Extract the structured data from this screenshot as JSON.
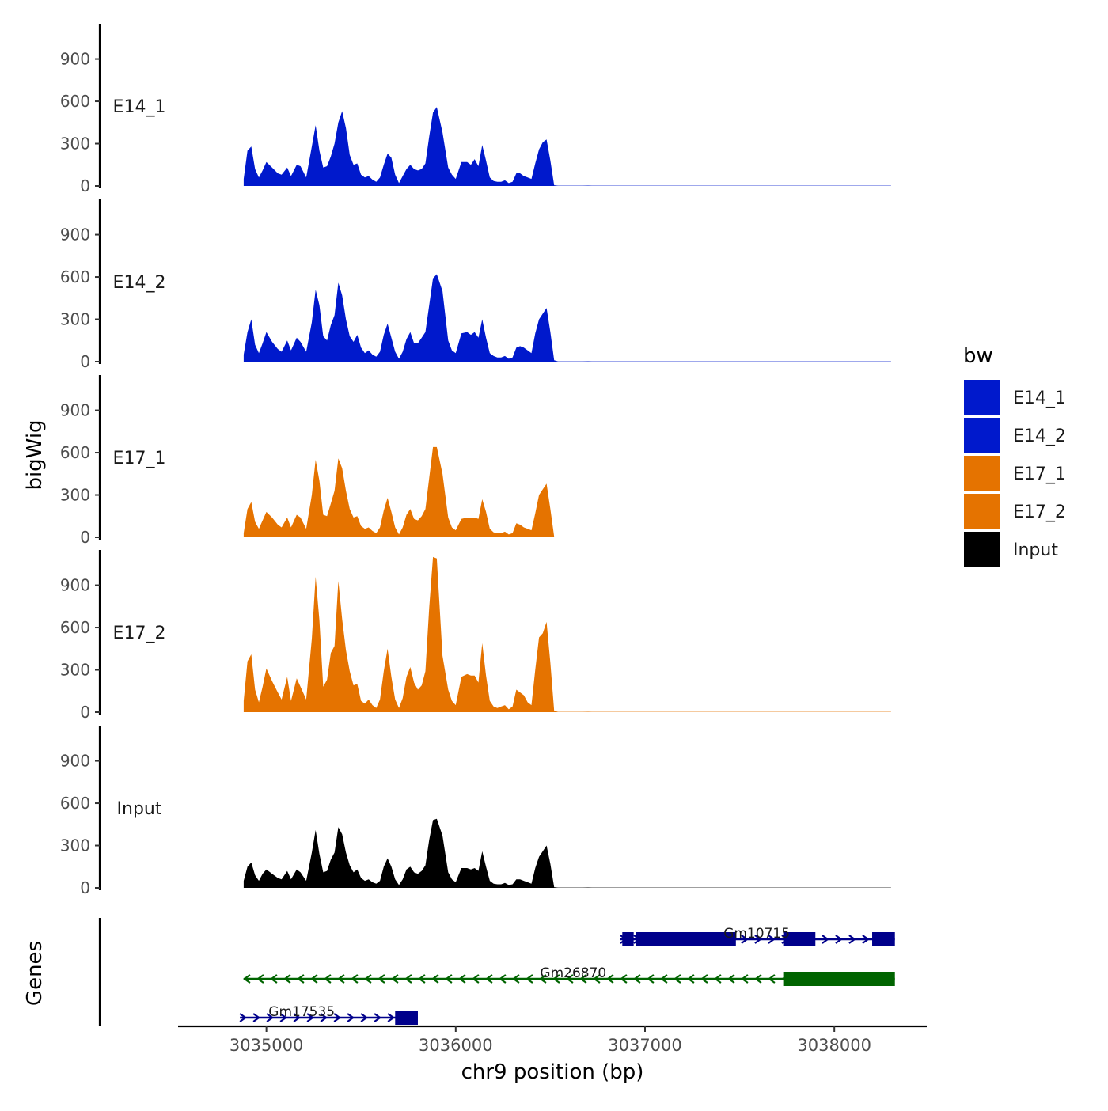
{
  "chart_data": {
    "type": "area",
    "ylabel": "bigWig",
    "xlabel": "chr9 position (bp)",
    "genes_label": "Genes",
    "ylim": [
      0,
      1150
    ],
    "yticks": [
      0,
      300,
      600,
      900
    ],
    "xlim": [
      3034550,
      3038480
    ],
    "xticks": [
      3035000,
      3036000,
      3037000,
      3038000
    ],
    "xtick_labels": [
      "3035000",
      "3036000",
      "3037000",
      "3038000"
    ],
    "legend": {
      "title": "bw",
      "position": "right",
      "entries": [
        {
          "label": "E14_1",
          "color": "#0019CC"
        },
        {
          "label": "E14_2",
          "color": "#0019CC"
        },
        {
          "label": "E17_1",
          "color": "#E57300"
        },
        {
          "label": "E17_2",
          "color": "#E57300"
        },
        {
          "label": "Input",
          "color": "#000000"
        }
      ]
    },
    "x": [
      3034880,
      3034900,
      3034920,
      3034940,
      3034960,
      3034980,
      3035000,
      3035030,
      3035060,
      3035080,
      3035110,
      3035130,
      3035160,
      3035180,
      3035210,
      3035240,
      3035260,
      3035280,
      3035300,
      3035320,
      3035340,
      3035360,
      3035380,
      3035400,
      3035420,
      3035440,
      3035460,
      3035480,
      3035500,
      3035520,
      3035540,
      3035560,
      3035580,
      3035600,
      3035620,
      3035640,
      3035660,
      3035680,
      3035700,
      3035720,
      3035740,
      3035760,
      3035780,
      3035800,
      3035820,
      3035840,
      3035860,
      3035880,
      3035900,
      3035930,
      3035960,
      3035980,
      3036000,
      3036030,
      3036060,
      3036080,
      3036100,
      3036120,
      3036140,
      3036160,
      3036180,
      3036200,
      3036220,
      3036240,
      3036260,
      3036280,
      3036300,
      3036320,
      3036340,
      3036360,
      3036380,
      3036400,
      3036420,
      3036440,
      3036460,
      3036480,
      3036500,
      3036520,
      3036540,
      3036560,
      3036580,
      3036600,
      3036640,
      3036670,
      3036700,
      3036720,
      3036740,
      3036760,
      3036780,
      3036800,
      3036820,
      3036840,
      3036860,
      3036880,
      3036900,
      3036920,
      3036940,
      3036960,
      3036980,
      3037000,
      3037020,
      3037040,
      3037060,
      3037080,
      3037200,
      3037400,
      3037600,
      3037800,
      3038000,
      3038200,
      3038300
    ],
    "series": [
      {
        "name": "E14_1",
        "color": "#0019CC",
        "values": [
          50,
          250,
          280,
          120,
          60,
          110,
          170,
          130,
          90,
          80,
          130,
          70,
          150,
          140,
          60,
          280,
          430,
          250,
          130,
          140,
          210,
          300,
          450,
          530,
          410,
          220,
          150,
          160,
          80,
          60,
          70,
          45,
          30,
          60,
          150,
          230,
          200,
          80,
          20,
          70,
          120,
          150,
          120,
          110,
          120,
          160,
          350,
          520,
          560,
          380,
          130,
          80,
          50,
          170,
          170,
          150,
          190,
          140,
          290,
          180,
          60,
          35,
          30,
          30,
          40,
          20,
          30,
          90,
          90,
          70,
          60,
          50,
          160,
          260,
          310,
          330,
          180,
          5,
          2,
          2,
          2,
          2,
          2,
          2,
          3,
          2,
          2,
          2,
          2,
          2,
          2,
          2,
          2,
          2,
          2,
          2,
          2,
          2,
          2,
          2,
          2,
          2,
          2,
          2,
          2,
          2,
          2,
          2,
          2,
          2,
          2
        ]
      },
      {
        "name": "E14_2",
        "color": "#0019CC",
        "values": [
          50,
          210,
          300,
          120,
          60,
          130,
          210,
          140,
          90,
          70,
          150,
          80,
          170,
          140,
          70,
          280,
          510,
          400,
          180,
          150,
          260,
          330,
          560,
          470,
          300,
          180,
          140,
          190,
          100,
          60,
          80,
          50,
          35,
          70,
          190,
          270,
          170,
          70,
          20,
          70,
          160,
          210,
          130,
          130,
          170,
          210,
          400,
          590,
          620,
          500,
          150,
          80,
          60,
          200,
          210,
          190,
          210,
          170,
          300,
          170,
          60,
          40,
          30,
          30,
          40,
          20,
          30,
          100,
          110,
          100,
          80,
          60,
          200,
          300,
          340,
          380,
          210,
          10,
          2,
          2,
          2,
          2,
          2,
          2,
          3,
          2,
          2,
          2,
          2,
          2,
          2,
          2,
          2,
          2,
          2,
          2,
          2,
          2,
          2,
          2,
          2,
          2,
          2,
          2,
          2,
          2,
          2,
          2,
          2,
          2,
          2
        ]
      },
      {
        "name": "E17_1",
        "color": "#E57300",
        "values": [
          30,
          200,
          250,
          110,
          60,
          120,
          180,
          140,
          90,
          70,
          140,
          70,
          160,
          140,
          60,
          300,
          550,
          400,
          160,
          150,
          240,
          330,
          560,
          490,
          330,
          200,
          140,
          150,
          80,
          60,
          70,
          45,
          30,
          70,
          190,
          280,
          180,
          70,
          20,
          70,
          160,
          200,
          130,
          120,
          150,
          200,
          420,
          640,
          640,
          450,
          140,
          70,
          50,
          130,
          140,
          140,
          140,
          130,
          270,
          180,
          60,
          35,
          30,
          30,
          40,
          20,
          30,
          100,
          90,
          70,
          60,
          50,
          170,
          300,
          340,
          380,
          200,
          5,
          2,
          2,
          2,
          2,
          2,
          2,
          3,
          2,
          2,
          2,
          2,
          2,
          2,
          2,
          2,
          2,
          2,
          2,
          2,
          2,
          2,
          2,
          2,
          2,
          2,
          2,
          2,
          2,
          2,
          2,
          2,
          2,
          2
        ]
      },
      {
        "name": "E17_2",
        "color": "#E57300",
        "values": [
          80,
          360,
          410,
          160,
          70,
          180,
          310,
          220,
          140,
          90,
          250,
          80,
          240,
          180,
          90,
          520,
          960,
          650,
          180,
          230,
          420,
          470,
          930,
          660,
          440,
          290,
          190,
          200,
          80,
          60,
          90,
          50,
          30,
          90,
          290,
          450,
          250,
          90,
          30,
          100,
          250,
          320,
          210,
          160,
          190,
          290,
          740,
          1100,
          1090,
          400,
          160,
          80,
          50,
          250,
          270,
          260,
          260,
          210,
          490,
          260,
          80,
          40,
          30,
          40,
          50,
          20,
          40,
          160,
          140,
          120,
          70,
          50,
          300,
          530,
          560,
          640,
          350,
          10,
          2,
          2,
          2,
          2,
          2,
          2,
          3,
          2,
          2,
          2,
          2,
          2,
          2,
          2,
          2,
          2,
          2,
          2,
          2,
          2,
          2,
          2,
          2,
          2,
          2,
          2,
          2,
          2,
          2,
          2,
          2,
          2,
          2
        ]
      },
      {
        "name": "Input",
        "color": "#000000",
        "values": [
          50,
          150,
          180,
          90,
          50,
          100,
          130,
          100,
          70,
          60,
          120,
          60,
          130,
          110,
          50,
          250,
          410,
          240,
          110,
          120,
          200,
          250,
          430,
          380,
          250,
          160,
          110,
          130,
          70,
          50,
          60,
          40,
          30,
          50,
          150,
          210,
          150,
          60,
          20,
          60,
          130,
          150,
          110,
          100,
          120,
          160,
          340,
          480,
          490,
          370,
          110,
          60,
          40,
          140,
          140,
          130,
          140,
          120,
          260,
          150,
          50,
          30,
          25,
          25,
          35,
          20,
          25,
          60,
          60,
          50,
          40,
          30,
          140,
          220,
          260,
          300,
          170,
          5,
          2,
          2,
          2,
          2,
          2,
          2,
          3,
          2,
          2,
          2,
          2,
          2,
          2,
          2,
          2,
          2,
          2,
          2,
          2,
          2,
          2,
          2,
          2,
          2,
          2,
          2,
          2,
          2,
          2,
          2,
          2,
          2,
          2
        ]
      }
    ],
    "genes": [
      {
        "name": "Gm10715",
        "strand": "+",
        "start": 3036870,
        "end": 3038320,
        "color": "#00008B",
        "exons": [
          [
            3036880,
            3036940
          ],
          [
            3036950,
            3037480
          ],
          [
            3037730,
            3037900
          ],
          [
            3038200,
            3038320
          ]
        ]
      },
      {
        "name": "Gm26870",
        "strand": "-",
        "start": 3034880,
        "end": 3038320,
        "color": "#006400",
        "exons": [
          [
            3037730,
            3038320
          ]
        ]
      },
      {
        "name": "Gm17535",
        "strand": "+",
        "start": 3034860,
        "end": 3035800,
        "color": "#00008B",
        "exons": [
          [
            3035680,
            3035800
          ]
        ]
      }
    ]
  }
}
